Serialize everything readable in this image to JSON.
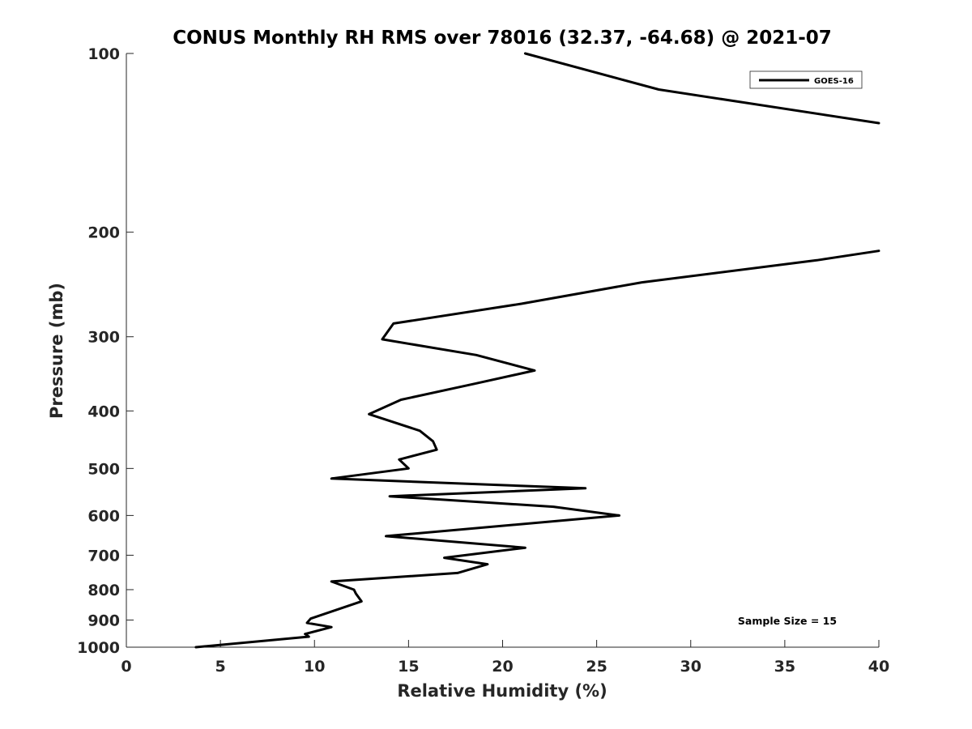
{
  "chart_data": {
    "type": "line",
    "title": "CONUS Monthly RH RMS over 78016 (32.37, -64.68) @ 2021-07",
    "xlabel": "Relative Humidity (%)",
    "ylabel": "Pressure (mb)",
    "xlim": [
      0,
      40
    ],
    "ylim": [
      1000,
      100
    ],
    "yscale": "log",
    "y_reversed": true,
    "xticks": [
      0,
      5,
      10,
      15,
      20,
      25,
      30,
      35,
      40
    ],
    "xtick_labels": [
      "0",
      "5",
      "10",
      "15",
      "20",
      "25",
      "30",
      "35",
      "40"
    ],
    "yticks": [
      100,
      200,
      300,
      400,
      500,
      600,
      700,
      800,
      900,
      1000
    ],
    "ytick_labels": [
      "100",
      "200",
      "300",
      "400",
      "500",
      "600",
      "700",
      "800",
      "900",
      "1000"
    ],
    "grid": false,
    "legend_position": "top-right",
    "series": [
      {
        "name": "GOES-16",
        "color": "#000000",
        "points": [
          [
            3.7,
            1000
          ],
          [
            9.7,
            960
          ],
          [
            9.5,
            950
          ],
          [
            10.9,
            925
          ],
          [
            9.6,
            910
          ],
          [
            9.8,
            895
          ],
          [
            12.5,
            837
          ],
          [
            12.2,
            812
          ],
          [
            12.1,
            800
          ],
          [
            10.9,
            775
          ],
          [
            17.6,
            750
          ],
          [
            19.2,
            725
          ],
          [
            16.9,
            707
          ],
          [
            21.2,
            680
          ],
          [
            13.8,
            650
          ],
          [
            26.2,
            600
          ],
          [
            22.7,
            580
          ],
          [
            14.0,
            557
          ],
          [
            24.4,
            540
          ],
          [
            10.9,
            520
          ],
          [
            15.0,
            500
          ],
          [
            14.5,
            483
          ],
          [
            16.5,
            465
          ],
          [
            16.3,
            450
          ],
          [
            15.6,
            432
          ],
          [
            12.9,
            405
          ],
          [
            14.6,
            383
          ],
          [
            18.5,
            360
          ],
          [
            21.7,
            342
          ],
          [
            18.6,
            322
          ],
          [
            13.6,
            303
          ],
          [
            14.2,
            285
          ],
          [
            21.0,
            264
          ],
          [
            27.4,
            243
          ],
          [
            36.7,
            223
          ],
          [
            40.0,
            215
          ]
        ]
      },
      {
        "name": "",
        "color": "#000000",
        "points": [
          [
            21.2,
            100
          ],
          [
            28.3,
            115
          ],
          [
            40.0,
            131
          ]
        ]
      }
    ],
    "annotations": [
      "Sample Size = 15"
    ]
  }
}
